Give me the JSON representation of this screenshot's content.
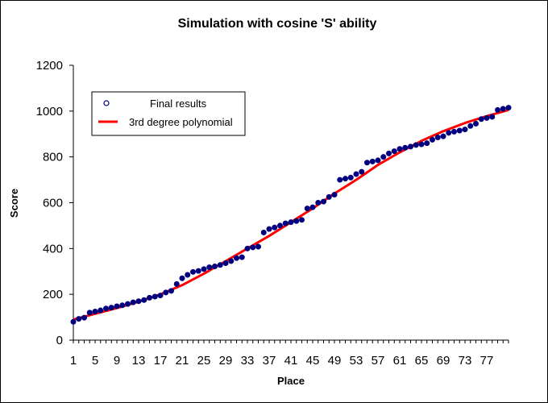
{
  "chart_data": {
    "type": "scatter",
    "title": "Simulation with cosine 'S' ability",
    "xlabel": "Place",
    "ylabel": "Score",
    "xlim": [
      1,
      81
    ],
    "ylim": [
      0,
      1200
    ],
    "x_ticks": [
      1,
      5,
      9,
      13,
      17,
      21,
      25,
      29,
      33,
      37,
      41,
      45,
      49,
      53,
      57,
      61,
      65,
      69,
      73,
      77
    ],
    "y_ticks": [
      0,
      200,
      400,
      600,
      800,
      1000,
      1200
    ],
    "grid": false,
    "legend_position": "top-left",
    "colors": {
      "points": "#00007f",
      "fit": "#ff0000"
    },
    "series": [
      {
        "name": "Final results",
        "kind": "scatter",
        "x": [
          1,
          2,
          3,
          4,
          5,
          6,
          7,
          8,
          9,
          10,
          11,
          12,
          13,
          14,
          15,
          16,
          17,
          18,
          19,
          20,
          21,
          22,
          23,
          24,
          25,
          26,
          27,
          28,
          29,
          30,
          31,
          32,
          33,
          34,
          35,
          36,
          37,
          38,
          39,
          40,
          41,
          42,
          43,
          44,
          45,
          46,
          47,
          48,
          49,
          50,
          51,
          52,
          53,
          54,
          55,
          56,
          57,
          58,
          59,
          60,
          61,
          62,
          63,
          64,
          65,
          66,
          67,
          68,
          69,
          70,
          71,
          72,
          73,
          74,
          75,
          76,
          77,
          78,
          79,
          80,
          81
        ],
        "y": [
          80,
          93,
          98,
          120,
          125,
          130,
          138,
          142,
          148,
          152,
          158,
          165,
          170,
          175,
          185,
          190,
          195,
          208,
          215,
          245,
          270,
          285,
          298,
          302,
          310,
          318,
          322,
          328,
          336,
          345,
          358,
          362,
          400,
          405,
          408,
          470,
          485,
          492,
          500,
          510,
          515,
          520,
          525,
          575,
          580,
          600,
          605,
          625,
          635,
          700,
          705,
          710,
          725,
          735,
          775,
          780,
          785,
          800,
          815,
          825,
          835,
          840,
          845,
          852,
          855,
          860,
          875,
          885,
          890,
          905,
          910,
          915,
          920,
          935,
          945,
          965,
          970,
          975,
          1005,
          1010,
          1015
        ]
      },
      {
        "name": "3rd degree polynomial",
        "kind": "line",
        "x": [
          1,
          5,
          9,
          13,
          17,
          21,
          25,
          29,
          33,
          37,
          41,
          45,
          49,
          53,
          57,
          61,
          65,
          69,
          73,
          77,
          81
        ],
        "y": [
          90,
          115,
          140,
          168,
          200,
          240,
          290,
          345,
          400,
          455,
          515,
          575,
          640,
          700,
          765,
          820,
          870,
          912,
          948,
          978,
          1005
        ]
      }
    ]
  }
}
